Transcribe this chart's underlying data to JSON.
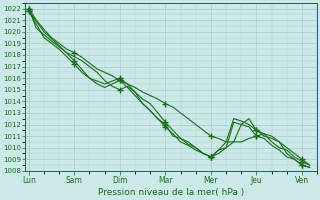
{
  "xlabel": "Pression niveau de la mer( hPa )",
  "bg_color": "#cce8e8",
  "grid_color": "#aacccc",
  "line_color": "#1a6e1a",
  "ylim": [
    1008,
    1022.5
  ],
  "yticks": [
    1008,
    1009,
    1010,
    1011,
    1012,
    1013,
    1014,
    1015,
    1016,
    1017,
    1018,
    1019,
    1020,
    1021,
    1022
  ],
  "day_labels": [
    "Lun",
    "Sam",
    "Dim",
    "Mar",
    "Mer",
    "Jeu",
    "Ven"
  ],
  "day_positions": [
    0,
    6,
    12,
    18,
    24,
    30,
    36
  ],
  "xlim": [
    -0.5,
    38
  ],
  "lines": [
    {
      "x": [
        0,
        1,
        2,
        3,
        4,
        5,
        6,
        7,
        8,
        9,
        10,
        11,
        12,
        13,
        14,
        15,
        16,
        17,
        18,
        19,
        20,
        21,
        22,
        23,
        24,
        25,
        26,
        27,
        28,
        29,
        30,
        31,
        32,
        33,
        34,
        35,
        36,
        37
      ],
      "y": [
        1022.0,
        1021.0,
        1020.2,
        1019.5,
        1019.0,
        1018.5,
        1018.2,
        1017.8,
        1017.3,
        1016.8,
        1016.5,
        1016.2,
        1015.8,
        1015.5,
        1015.2,
        1014.8,
        1014.5,
        1014.2,
        1013.8,
        1013.5,
        1013.0,
        1012.5,
        1012.0,
        1011.5,
        1011.0,
        1010.8,
        1010.5,
        1010.5,
        1010.5,
        1010.8,
        1011.0,
        1011.2,
        1011.0,
        1010.5,
        1010.0,
        1009.5,
        1009.0,
        1008.5
      ]
    },
    {
      "x": [
        0,
        2,
        4,
        6,
        8,
        10,
        12,
        13,
        14,
        15,
        16,
        17,
        18,
        19,
        20,
        21,
        22,
        23,
        24,
        25,
        26,
        27,
        28,
        29,
        30,
        31,
        32,
        33,
        34,
        35,
        36,
        37
      ],
      "y": [
        1021.8,
        1020.0,
        1018.8,
        1017.5,
        1016.0,
        1015.5,
        1016.0,
        1015.5,
        1014.8,
        1013.8,
        1013.2,
        1012.5,
        1012.0,
        1011.0,
        1010.8,
        1010.3,
        1010.0,
        1009.5,
        1009.2,
        1009.8,
        1010.0,
        1010.5,
        1012.0,
        1012.5,
        1011.5,
        1011.0,
        1010.8,
        1010.5,
        1009.5,
        1009.0,
        1008.5,
        1008.3
      ]
    },
    {
      "x": [
        0,
        1,
        3,
        5,
        7,
        8,
        9,
        10,
        11,
        12,
        13,
        14,
        15,
        16,
        17,
        18,
        19,
        20,
        21,
        22,
        23,
        24,
        25,
        26,
        27,
        28,
        29,
        30,
        31,
        32,
        33,
        34,
        35,
        36,
        37
      ],
      "y": [
        1022.0,
        1020.3,
        1019.2,
        1018.2,
        1017.5,
        1017.0,
        1016.5,
        1015.8,
        1015.3,
        1015.0,
        1015.3,
        1014.8,
        1014.2,
        1013.8,
        1013.0,
        1012.2,
        1011.5,
        1010.8,
        1010.5,
        1010.0,
        1009.5,
        1009.2,
        1009.5,
        1010.0,
        1012.2,
        1012.0,
        1011.8,
        1011.0,
        1010.8,
        1010.2,
        1009.8,
        1009.2,
        1009.0,
        1008.5,
        1008.3
      ]
    },
    {
      "x": [
        0,
        2,
        4,
        6,
        7,
        8,
        9,
        10,
        11,
        12,
        13,
        14,
        15,
        16,
        17,
        18,
        19,
        20,
        21,
        22,
        23,
        24,
        25,
        26,
        27,
        28,
        29,
        30,
        31,
        32,
        33,
        34,
        35,
        36,
        37
      ],
      "y": [
        1021.8,
        1019.5,
        1018.5,
        1017.2,
        1016.5,
        1016.0,
        1015.5,
        1015.2,
        1015.5,
        1015.8,
        1015.2,
        1014.5,
        1013.8,
        1013.2,
        1012.5,
        1011.8,
        1011.2,
        1010.5,
        1010.2,
        1009.8,
        1009.5,
        1009.2,
        1009.8,
        1010.5,
        1012.5,
        1012.3,
        1012.0,
        1011.5,
        1011.2,
        1010.5,
        1010.0,
        1009.8,
        1009.2,
        1008.8,
        1008.5
      ]
    }
  ],
  "marker_x": [
    0,
    6,
    12,
    18,
    24,
    30,
    36
  ]
}
